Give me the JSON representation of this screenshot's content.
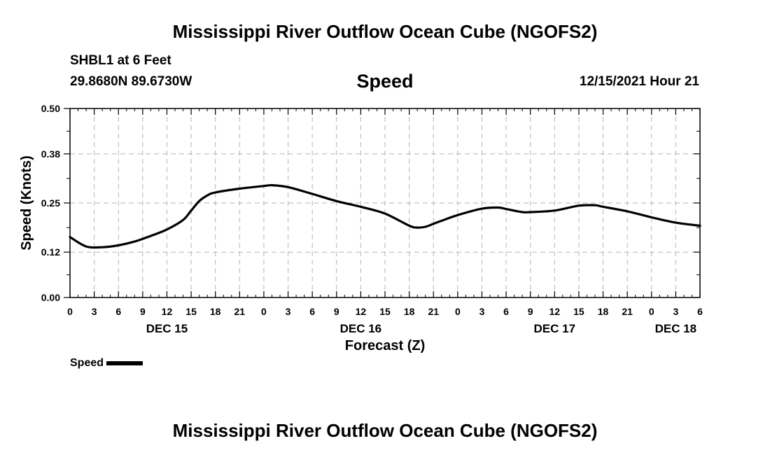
{
  "header": {
    "title": "Mississippi River Outflow Ocean Cube (NGOFS2)",
    "station": "SHBL1 at 6 Feet",
    "coords": "29.8680N  89.6730W",
    "chart_title": "Speed",
    "timestamp": "12/15/2021 Hour 21"
  },
  "legend": {
    "label": "Speed"
  },
  "footer": {
    "title": "Mississippi River Outflow Ocean Cube (NGOFS2)"
  },
  "chart_data": {
    "type": "line",
    "title": "Speed",
    "xlabel": "Forecast (Z)",
    "ylabel": "Speed (Knots)",
    "xlim": [
      0,
      78
    ],
    "ylim": [
      0,
      0.5
    ],
    "yticks": [
      0.0,
      0.12,
      0.25,
      0.38,
      0.5
    ],
    "ytick_labels": [
      "0.00",
      "0.12",
      "0.25",
      "0.38",
      "0.50"
    ],
    "xtick_hours": [
      0,
      3,
      6,
      9,
      12,
      15,
      18,
      21,
      24,
      27,
      30,
      33,
      36,
      39,
      42,
      45,
      48,
      51,
      54,
      57,
      60,
      63,
      66,
      69,
      72,
      75,
      78
    ],
    "xtick_labels": [
      "0",
      "3",
      "6",
      "9",
      "12",
      "15",
      "18",
      "21",
      "0",
      "3",
      "6",
      "9",
      "12",
      "15",
      "18",
      "21",
      "0",
      "3",
      "6",
      "9",
      "12",
      "15",
      "18",
      "21",
      "0",
      "3",
      "6"
    ],
    "date_labels": [
      {
        "label": "DEC 15",
        "hour": 12
      },
      {
        "label": "DEC 16",
        "hour": 36
      },
      {
        "label": "DEC 17",
        "hour": 60
      },
      {
        "label": "DEC 18",
        "hour": 75
      }
    ],
    "grid": true,
    "series": [
      {
        "name": "Speed",
        "x": [
          0,
          2,
          4,
          6,
          8,
          10,
          12,
          14,
          15,
          16,
          17,
          18,
          21,
          24,
          25,
          27,
          30,
          33,
          36,
          39,
          42,
          43,
          44,
          45,
          46,
          48,
          51,
          53,
          54,
          56,
          57,
          60,
          63,
          65,
          66,
          69,
          72,
          75,
          78
        ],
        "y": [
          0.16,
          0.135,
          0.133,
          0.138,
          0.148,
          0.163,
          0.18,
          0.205,
          0.23,
          0.255,
          0.27,
          0.278,
          0.288,
          0.295,
          0.297,
          0.292,
          0.274,
          0.255,
          0.24,
          0.222,
          0.19,
          0.185,
          0.187,
          0.195,
          0.203,
          0.218,
          0.235,
          0.238,
          0.234,
          0.226,
          0.226,
          0.23,
          0.243,
          0.244,
          0.24,
          0.228,
          0.212,
          0.198,
          0.19
        ]
      }
    ]
  }
}
